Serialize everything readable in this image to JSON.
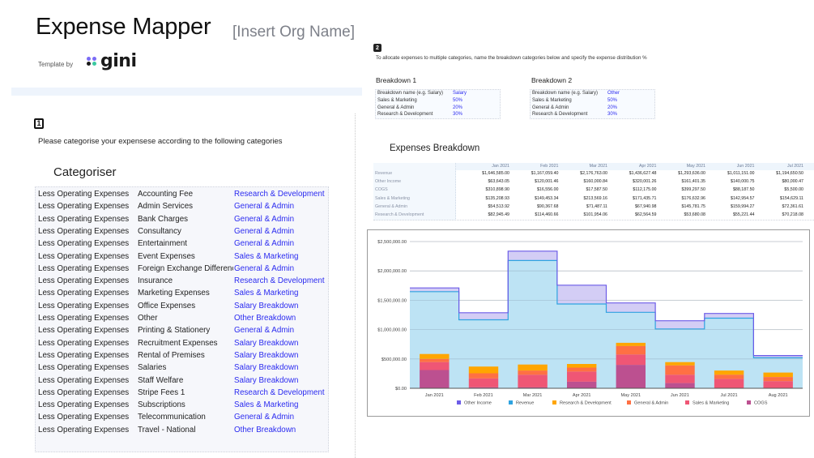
{
  "header": {
    "title": "Expense Mapper",
    "org_name": "[Insert Org Name]",
    "template_by": "Template by",
    "brand": "gini"
  },
  "section1": {
    "step": "1",
    "instruction": "Please categorise your expensese according to the following categories",
    "categoriser_title": "Categoriser",
    "rows": [
      {
        "group": "Less Operating Expenses",
        "account": "Accounting Fee",
        "category": "Research & Development"
      },
      {
        "group": "Less Operating Expenses",
        "account": "Admin Services",
        "category": "General & Admin"
      },
      {
        "group": "Less Operating Expenses",
        "account": "Bank Charges",
        "category": "General & Admin"
      },
      {
        "group": "Less Operating Expenses",
        "account": "Consultancy",
        "category": "General & Admin"
      },
      {
        "group": "Less Operating Expenses",
        "account": "Entertainment",
        "category": "General & Admin"
      },
      {
        "group": "Less Operating Expenses",
        "account": "Event Expenses",
        "category": "Sales & Marketing"
      },
      {
        "group": "Less Operating Expenses",
        "account": "Foreign Exchange Difference",
        "category": "General & Admin"
      },
      {
        "group": "Less Operating Expenses",
        "account": "Insurance",
        "category": "Research & Development"
      },
      {
        "group": "Less Operating Expenses",
        "account": "Marketing Expenses",
        "category": "Sales & Marketing"
      },
      {
        "group": "Less Operating Expenses",
        "account": "Office Expenses",
        "category": "Salary Breakdown"
      },
      {
        "group": "Less Operating Expenses",
        "account": "Other",
        "category": "Other Breakdown"
      },
      {
        "group": "Less Operating Expenses",
        "account": "Printing & Stationery",
        "category": "General & Admin"
      },
      {
        "group": "Less Operating Expenses",
        "account": "Recruitment Expenses",
        "category": "Salary Breakdown"
      },
      {
        "group": "Less Operating Expenses",
        "account": "Rental of Premises",
        "category": "Salary Breakdown"
      },
      {
        "group": "Less Operating Expenses",
        "account": "Salaries",
        "category": "Salary Breakdown"
      },
      {
        "group": "Less Operating Expenses",
        "account": "Staff Welfare",
        "category": "Salary Breakdown"
      },
      {
        "group": "Less Operating Expenses",
        "account": "Stripe Fees 1",
        "category": "Research & Development"
      },
      {
        "group": "Less Operating Expenses",
        "account": "Subscriptions",
        "category": "Sales & Marketing"
      },
      {
        "group": "Less Operating Expenses",
        "account": "Telecommunication",
        "category": "General & Admin"
      },
      {
        "group": "Less Operating Expenses",
        "account": "Travel - National",
        "category": "Other Breakdown"
      }
    ]
  },
  "section2": {
    "step": "2",
    "instruction": "To allocate expenses to multiple categories, name the breakdown categories below and specify the expense distribution %",
    "breakdowns": [
      {
        "title": "Breakdown 1",
        "rows": [
          {
            "label": "Breakdown name (e.g. Salary)",
            "value": "Salary"
          },
          {
            "label": "Sales & Marketing",
            "value": "50%"
          },
          {
            "label": "General & Admin",
            "value": "20%"
          },
          {
            "label": "Research & Development",
            "value": "30%"
          }
        ]
      },
      {
        "title": "Breakdown 2",
        "rows": [
          {
            "label": "Breakdown name (e.g. Salary)",
            "value": "Other"
          },
          {
            "label": "Sales & Marketing",
            "value": "50%"
          },
          {
            "label": "General & Admin",
            "value": "20%"
          },
          {
            "label": "Research & Development",
            "value": "30%"
          }
        ]
      }
    ]
  },
  "expenses_breakdown": {
    "title": "Expenses Breakdown",
    "months": [
      "Jan 2021",
      "Feb 2021",
      "Mar 2021",
      "Apr 2021",
      "May 2021",
      "Jun 2021",
      "Jul 2021",
      "Aug 2021"
    ],
    "rows": [
      {
        "label": "Revenue",
        "values": [
          "$1,646,585.00",
          "$1,167,059.40",
          "$2,176,763.00",
          "$1,436,627.48",
          "$1,293,636.00",
          "$1,011,151.00",
          "$1,194,650.50",
          "$518,663.00"
        ]
      },
      {
        "label": "Other Income",
        "values": [
          "$63,643.05",
          "$120,001.46",
          "$160,000.84",
          "$320,001.26",
          "$161,401.35",
          "$140,000.75",
          "$80,000.47",
          "$40,000.00"
        ]
      },
      {
        "label": "COGS",
        "values": [
          "$310,898.90",
          "$16,556.00",
          "$17,587.50",
          "$112,175.00",
          "$399,297.50",
          "$88,187.50",
          "$5,500.00",
          "$6,500.00"
        ]
      },
      {
        "label": "Sales & Marketing",
        "values": [
          "$135,208.93",
          "$149,453.34",
          "$213,569.16",
          "$171,435.71",
          "$176,632.96",
          "$142,954.57",
          "$154,629.11",
          "$114,905.53"
        ]
      },
      {
        "label": "General & Admin",
        "values": [
          "$54,513.92",
          "$90,367.68",
          "$71,487.11",
          "$67,940.98",
          "$145,781.75",
          "$159,994.27",
          "$72,361.61",
          "$71,074.09"
        ]
      },
      {
        "label": "Research & Development",
        "values": [
          "$82,945.49",
          "$114,460.66",
          "$101,954.06",
          "$62,564.59",
          "$53,680.08",
          "$55,221.44",
          "$70,218.08",
          "$75,262.02"
        ]
      }
    ]
  },
  "chart_data": {
    "type": "bar",
    "title": "",
    "xlabel": "",
    "ylabel": "",
    "categories": [
      "Jan 2021",
      "Feb 2021",
      "Mar 2021",
      "Apr 2021",
      "May 2021",
      "Jun 2021",
      "Jul 2021",
      "Aug 2021"
    ],
    "ylim": [
      0,
      2500000
    ],
    "yticks": [
      0,
      500000,
      1000000,
      1500000,
      2000000,
      2500000
    ],
    "ytick_labels": [
      "$0.00",
      "$500,000.00",
      "$1,000,000.00",
      "$1,500,000.00",
      "$2,000,000.00",
      "$2,500,000.00"
    ],
    "grid": true,
    "legend_position": "bottom",
    "area_series": [
      {
        "name": "Other Income",
        "color": "#6c5ce7",
        "values": [
          63643.05,
          120001.46,
          160000.84,
          320001.26,
          161401.35,
          140000.75,
          80000.47,
          40000.0
        ]
      },
      {
        "name": "Revenue",
        "color": "#2ea3e0",
        "values": [
          1646585.0,
          1167059.4,
          2176763.0,
          1436627.48,
          1293636.0,
          1011151.0,
          1194650.5,
          518663.0
        ]
      }
    ],
    "bar_series": [
      {
        "name": "Research & Development",
        "color": "#ffa600",
        "values": [
          82945.49,
          114460.66,
          101954.06,
          62564.59,
          53680.08,
          55221.44,
          70218.08,
          75262.02
        ]
      },
      {
        "name": "General & Admin",
        "color": "#ff7043",
        "values": [
          54513.92,
          90367.68,
          71487.11,
          67940.98,
          145781.75,
          159994.27,
          72361.61,
          71074.09
        ]
      },
      {
        "name": "Sales & Marketing",
        "color": "#ef5675",
        "values": [
          135208.93,
          149453.34,
          213569.16,
          171435.71,
          176632.96,
          142954.57,
          154629.11,
          114905.53
        ]
      },
      {
        "name": "COGS",
        "color": "#bc5090",
        "values": [
          310898.9,
          16556.0,
          17587.5,
          112175.0,
          399297.5,
          88187.5,
          5500.0,
          6500.0
        ]
      }
    ],
    "legend": [
      "Other Income",
      "Revenue",
      "Research & Development",
      "General & Admin",
      "Sales & Marketing",
      "COGS"
    ]
  },
  "colors": {
    "link_blue": "#2b2bf0",
    "band": "#eef4fc",
    "chart_fill_revenue": "#bde3f4",
    "chart_fill_other": "#d3cdf5"
  }
}
